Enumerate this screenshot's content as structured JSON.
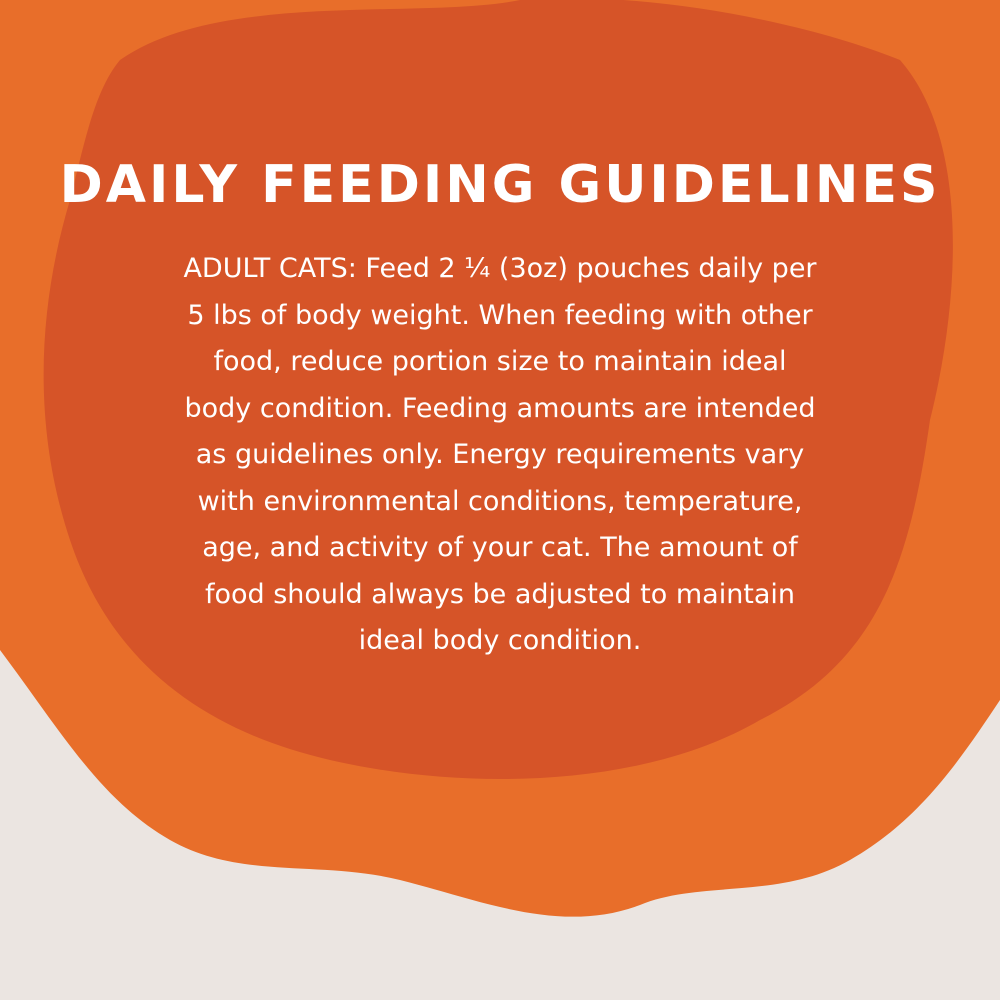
{
  "colors": {
    "outer_orange": "#e86e2a",
    "inner_orange": "#d65428",
    "background": "#ebe5e1",
    "text": "#ffffff"
  },
  "title": "DAILY FEEDING GUIDELINES",
  "body_lines": [
    "ADULT CATS: Feed 2 ¼ (3oz) pouches daily per",
    "5 lbs of body weight. When feeding with other",
    "food, reduce portion size to maintain ideal",
    "body condition. Feeding amounts are intended",
    "as guidelines only. Energy requirements vary",
    "with environmental conditions, temperature,",
    "age, and activity of your cat. The amount of",
    "food should always be adjusted to maintain",
    "ideal body condition."
  ]
}
